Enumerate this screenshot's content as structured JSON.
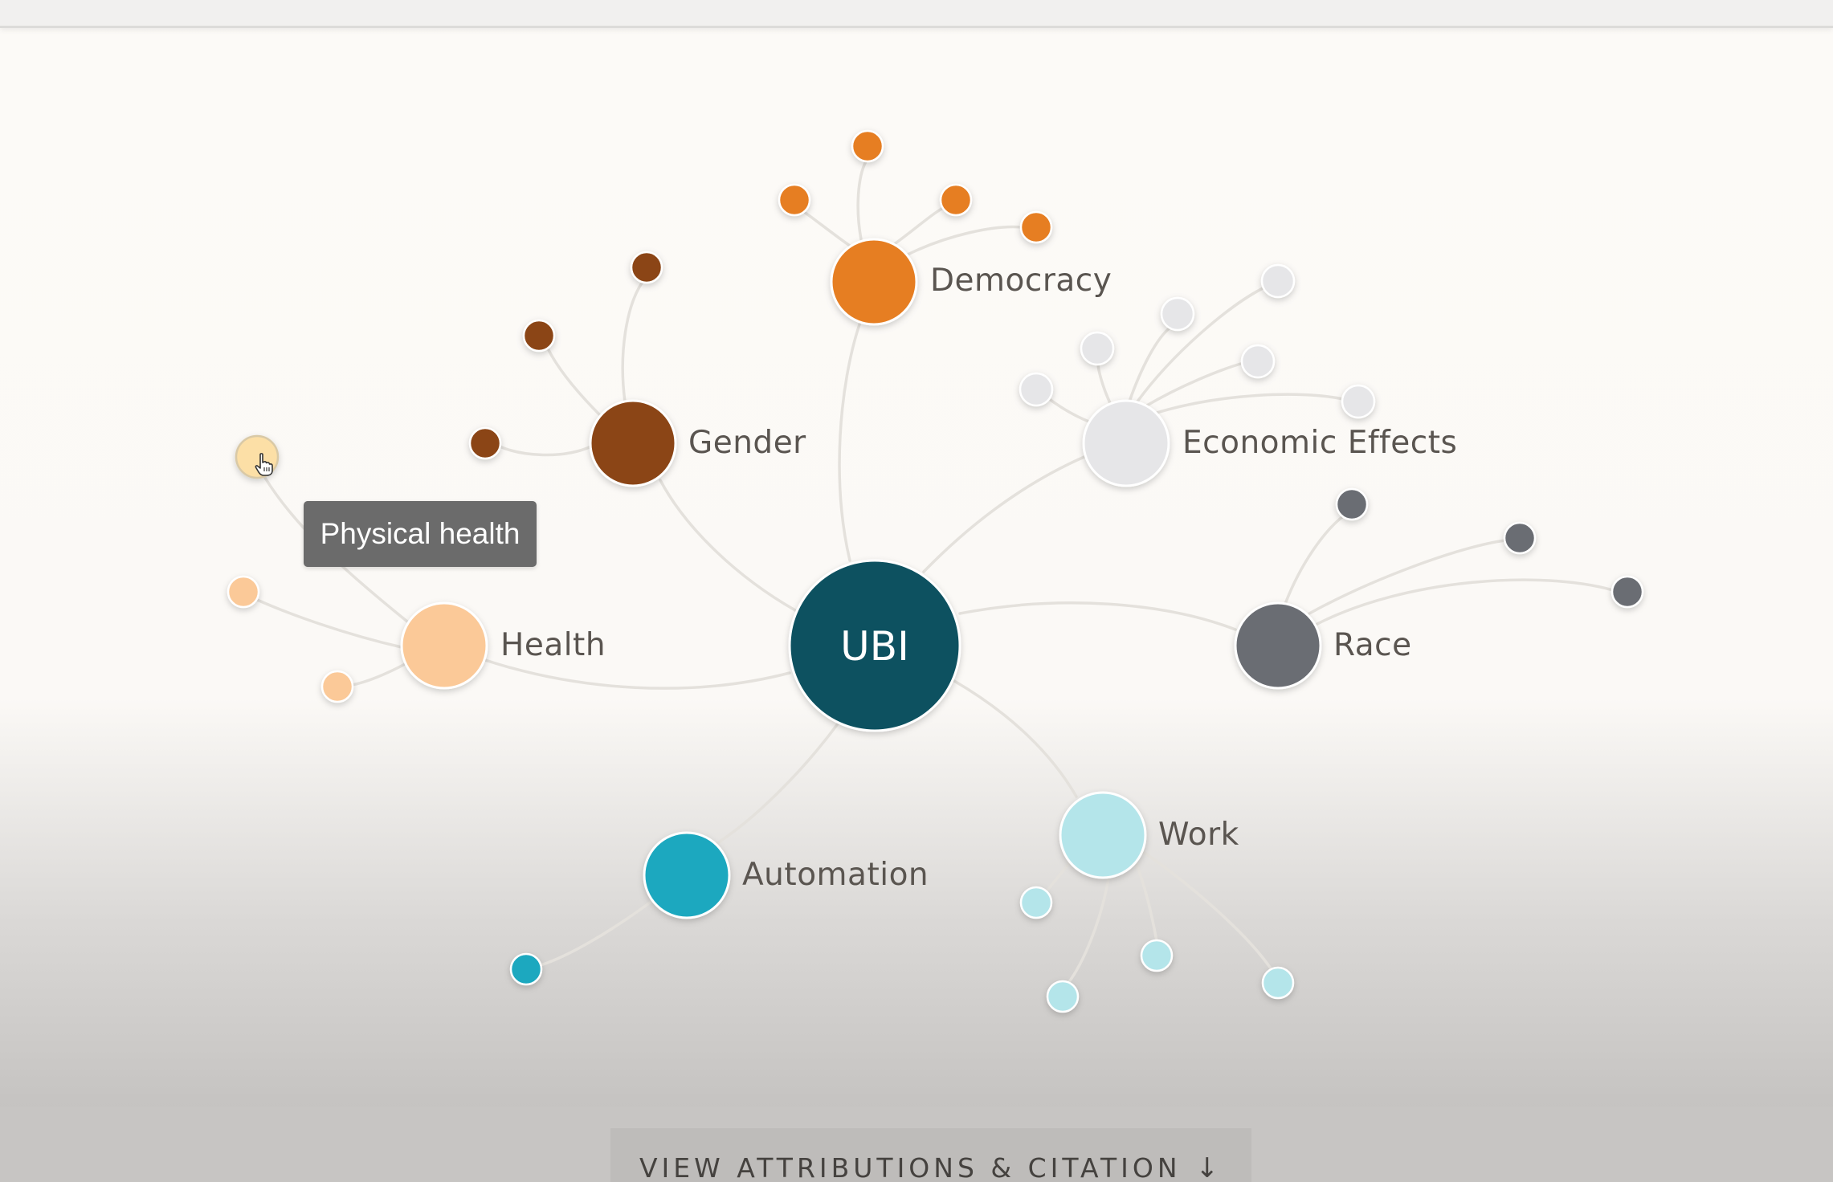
{
  "diagram": {
    "center": {
      "label": "UBI",
      "color": "#0a5160"
    },
    "edge_color": "#e4e1dc",
    "categories": [
      {
        "id": "democracy",
        "label": "Democracy",
        "color": "#e67e22",
        "leaf_count": 4
      },
      {
        "id": "gender",
        "label": "Gender",
        "color": "#8b4513",
        "leaf_count": 3
      },
      {
        "id": "economic-effects",
        "label": "Economic Effects",
        "color": "#e6e6e8",
        "leaf_count": 6
      },
      {
        "id": "health",
        "label": "Health",
        "color": "#fbc998",
        "leaf_count": 3
      },
      {
        "id": "race",
        "label": "Race",
        "color": "#6b6d73",
        "leaf_count": 3
      },
      {
        "id": "automation",
        "label": "Automation",
        "color": "#1ba8bf",
        "leaf_count": 1
      },
      {
        "id": "work",
        "label": "Work",
        "color": "#b4e5ea",
        "leaf_count": 4
      }
    ],
    "hovered_node_color": "#fcdfa6"
  },
  "tooltip": {
    "text": "Physical health"
  },
  "footer": {
    "button_label": "VIEW ATTRIBUTIONS & CITATION",
    "button_arrow": "↓"
  }
}
